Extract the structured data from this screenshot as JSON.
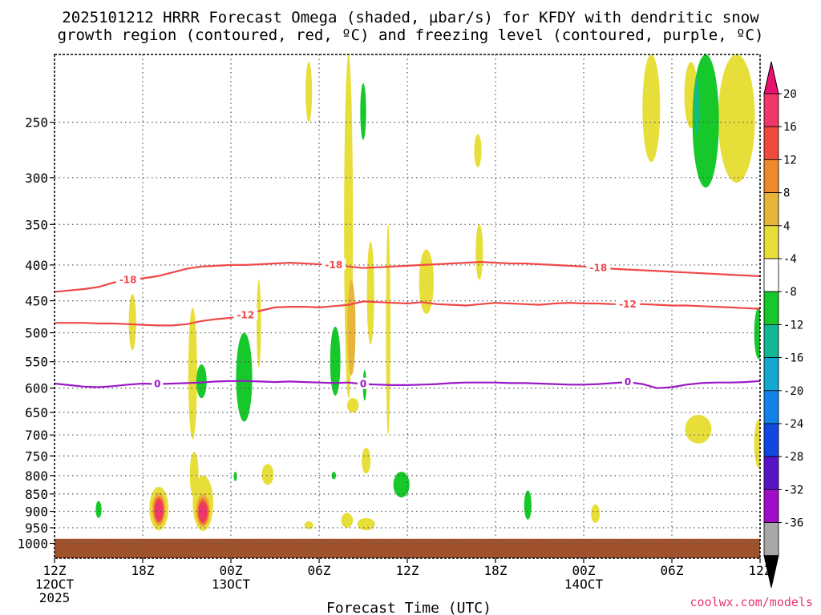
{
  "chart_data": {
    "type": "contour",
    "title_line1": "2025101212 HRRR Forecast Omega (shaded, µbar/s) for KFDY with dendritic snow",
    "title_line2": "growth region (contoured, red, ºC) and freezing level (contoured, purple, ºC)",
    "xlabel": "Forecast Time (UTC)",
    "credit": "coolwx.com/models",
    "y_axis": {
      "unit": "hPa",
      "range": [
        1050,
        200
      ],
      "ticks": [
        250,
        300,
        350,
        400,
        450,
        500,
        550,
        600,
        650,
        700,
        750,
        800,
        850,
        900,
        950,
        1000
      ]
    },
    "x_axis": {
      "unit": "forecast hour",
      "range": [
        0,
        48
      ],
      "ticks": [
        {
          "hour": 0,
          "lines": [
            "12Z",
            "12OCT",
            "2025"
          ]
        },
        {
          "hour": 6,
          "lines": [
            "18Z"
          ]
        },
        {
          "hour": 12,
          "lines": [
            "00Z",
            "13OCT"
          ]
        },
        {
          "hour": 18,
          "lines": [
            "06Z"
          ]
        },
        {
          "hour": 24,
          "lines": [
            "12Z"
          ]
        },
        {
          "hour": 30,
          "lines": [
            "18Z"
          ]
        },
        {
          "hour": 36,
          "lines": [
            "00Z",
            "14OCT"
          ]
        },
        {
          "hour": 42,
          "lines": [
            "06Z"
          ]
        },
        {
          "hour": 48,
          "lines": [
            "12Z"
          ]
        }
      ]
    },
    "colorbar": {
      "labels": [
        "20",
        "16",
        "12",
        "8",
        "4",
        "-4",
        "-8",
        "-12",
        "-16",
        "-20",
        "-24",
        "-28",
        "-32",
        "-36"
      ],
      "colors": [
        "#f0366b",
        "#f04a3c",
        "#ee8a2c",
        "#e8b43a",
        "#e8de3a",
        "#ffffff",
        "#16c82a",
        "#12b894",
        "#12a8d0",
        "#1282e8",
        "#1248e0",
        "#5a14c8",
        "#a00cc8",
        "#a8a8a8"
      ],
      "top_arrow": "#e8126e",
      "bottom_arrow": "#000000"
    },
    "contours": [
      {
        "label": "-18",
        "color": "#f04848",
        "label_hours": [
          5,
          19,
          37
        ],
        "points": [
          [
            0,
            437
          ],
          [
            1,
            435
          ],
          [
            2,
            433
          ],
          [
            3,
            430
          ],
          [
            4,
            424
          ],
          [
            5,
            420
          ],
          [
            6,
            418
          ],
          [
            7,
            415
          ],
          [
            8,
            410
          ],
          [
            9,
            405
          ],
          [
            10,
            402
          ],
          [
            11,
            401
          ],
          [
            12,
            400
          ],
          [
            13,
            400
          ],
          [
            14,
            399
          ],
          [
            15,
            398
          ],
          [
            16,
            397
          ],
          [
            17,
            398
          ],
          [
            18,
            399
          ],
          [
            19,
            400
          ],
          [
            20,
            402
          ],
          [
            21,
            404
          ],
          [
            22,
            403
          ],
          [
            23,
            402
          ],
          [
            24,
            401
          ],
          [
            25,
            400
          ],
          [
            26,
            399
          ],
          [
            27,
            398
          ],
          [
            28,
            397
          ],
          [
            29,
            396
          ],
          [
            30,
            397
          ],
          [
            31,
            398
          ],
          [
            32,
            398
          ],
          [
            33,
            399
          ],
          [
            34,
            400
          ],
          [
            35,
            401
          ],
          [
            36,
            402
          ],
          [
            37,
            404
          ],
          [
            38,
            405
          ],
          [
            39,
            406
          ],
          [
            40,
            407
          ],
          [
            41,
            408
          ],
          [
            42,
            409
          ],
          [
            43,
            410
          ],
          [
            44,
            411
          ],
          [
            45,
            412
          ],
          [
            46,
            413
          ],
          [
            47,
            414
          ],
          [
            48,
            415
          ]
        ]
      },
      {
        "label": "-12",
        "color": "#f04848",
        "label_hours": [
          13,
          39
        ],
        "points": [
          [
            0,
            484
          ],
          [
            1,
            484
          ],
          [
            2,
            484
          ],
          [
            3,
            485
          ],
          [
            4,
            485
          ],
          [
            5,
            486
          ],
          [
            6,
            487
          ],
          [
            7,
            488
          ],
          [
            8,
            488
          ],
          [
            9,
            486
          ],
          [
            10,
            481
          ],
          [
            11,
            478
          ],
          [
            12,
            476
          ],
          [
            13,
            472
          ],
          [
            14,
            465
          ],
          [
            15,
            460
          ],
          [
            16,
            459
          ],
          [
            17,
            459
          ],
          [
            18,
            460
          ],
          [
            19,
            458
          ],
          [
            20,
            456
          ],
          [
            21,
            451
          ],
          [
            22,
            452
          ],
          [
            23,
            453
          ],
          [
            24,
            454
          ],
          [
            25,
            452
          ],
          [
            26,
            455
          ],
          [
            27,
            456
          ],
          [
            28,
            457
          ],
          [
            29,
            455
          ],
          [
            30,
            453
          ],
          [
            31,
            454
          ],
          [
            32,
            455
          ],
          [
            33,
            456
          ],
          [
            34,
            454
          ],
          [
            35,
            453
          ],
          [
            36,
            454
          ],
          [
            37,
            454
          ],
          [
            38,
            455
          ],
          [
            39,
            455
          ],
          [
            40,
            455
          ],
          [
            41,
            456
          ],
          [
            42,
            457
          ],
          [
            43,
            457
          ],
          [
            44,
            458
          ],
          [
            45,
            459
          ],
          [
            46,
            460
          ],
          [
            47,
            461
          ],
          [
            48,
            462
          ]
        ]
      },
      {
        "label": "0",
        "color": "#9a18c8",
        "label_hours": [
          7,
          21,
          39
        ],
        "points": [
          [
            0,
            591
          ],
          [
            1,
            594
          ],
          [
            2,
            597
          ],
          [
            3,
            598
          ],
          [
            4,
            596
          ],
          [
            5,
            593
          ],
          [
            6,
            591
          ],
          [
            7,
            592
          ],
          [
            8,
            591
          ],
          [
            9,
            590
          ],
          [
            10,
            589
          ],
          [
            11,
            587
          ],
          [
            12,
            586
          ],
          [
            13,
            586
          ],
          [
            14,
            587
          ],
          [
            15,
            588
          ],
          [
            16,
            587
          ],
          [
            17,
            588
          ],
          [
            18,
            589
          ],
          [
            19,
            590
          ],
          [
            20,
            589
          ],
          [
            21,
            592
          ],
          [
            22,
            593
          ],
          [
            23,
            594
          ],
          [
            24,
            594
          ],
          [
            25,
            593
          ],
          [
            26,
            592
          ],
          [
            27,
            590
          ],
          [
            28,
            589
          ],
          [
            29,
            589
          ],
          [
            30,
            589
          ],
          [
            31,
            590
          ],
          [
            32,
            590
          ],
          [
            33,
            591
          ],
          [
            34,
            592
          ],
          [
            35,
            593
          ],
          [
            36,
            593
          ],
          [
            37,
            592
          ],
          [
            38,
            590
          ],
          [
            39,
            588
          ],
          [
            40,
            592
          ],
          [
            41,
            600
          ],
          [
            42,
            598
          ],
          [
            43,
            593
          ],
          [
            44,
            590
          ],
          [
            45,
            589
          ],
          [
            46,
            589
          ],
          [
            47,
            588
          ],
          [
            48,
            586
          ]
        ]
      }
    ],
    "shaded_regions": [
      {
        "color": "#e8de3a",
        "hour": 7.1,
        "p_top": 830,
        "p_bottom": 958,
        "half_width_h": 0.65
      },
      {
        "color": "#e8de3a",
        "hour": 10.1,
        "p_top": 800,
        "p_bottom": 960,
        "half_width_h": 0.7
      },
      {
        "color": "#e8de3a",
        "hour": 9.5,
        "p_top": 740,
        "p_bottom": 860,
        "half_width_h": 0.3
      },
      {
        "color": "#e8de3a",
        "hour": 5.3,
        "p_top": 440,
        "p_bottom": 530,
        "half_width_h": 0.25
      },
      {
        "color": "#e8de3a",
        "hour": 9.4,
        "p_top": 460,
        "p_bottom": 710,
        "half_width_h": 0.3
      },
      {
        "color": "#e8de3a",
        "hour": 13.9,
        "p_top": 420,
        "p_bottom": 560,
        "half_width_h": 0.15
      },
      {
        "color": "#e8de3a",
        "hour": 17.3,
        "p_top": 205,
        "p_bottom": 250,
        "half_width_h": 0.22
      },
      {
        "color": "#e8de3a",
        "hour": 20.0,
        "p_top": 200,
        "p_bottom": 620,
        "half_width_h": 0.3
      },
      {
        "color": "#e8de3a",
        "hour": 20.3,
        "p_top": 620,
        "p_bottom": 650,
        "half_width_h": 0.4
      },
      {
        "color": "#e8de3a",
        "hour": 22.7,
        "p_top": 350,
        "p_bottom": 700,
        "half_width_h": 0.15
      },
      {
        "color": "#e8de3a",
        "hour": 21.5,
        "p_top": 370,
        "p_bottom": 520,
        "half_width_h": 0.25
      },
      {
        "color": "#e8de3a",
        "hour": 19.9,
        "p_top": 905,
        "p_bottom": 950,
        "half_width_h": 0.4
      },
      {
        "color": "#e8de3a",
        "hour": 21.2,
        "p_top": 920,
        "p_bottom": 958,
        "half_width_h": 0.6
      },
      {
        "color": "#e8de3a",
        "hour": 21.2,
        "p_top": 730,
        "p_bottom": 795,
        "half_width_h": 0.3
      },
      {
        "color": "#e8de3a",
        "hour": 25.3,
        "p_top": 380,
        "p_bottom": 470,
        "half_width_h": 0.5
      },
      {
        "color": "#e8de3a",
        "hour": 28.8,
        "p_top": 260,
        "p_bottom": 290,
        "half_width_h": 0.25
      },
      {
        "color": "#e8de3a",
        "hour": 28.9,
        "p_top": 350,
        "p_bottom": 420,
        "half_width_h": 0.25
      },
      {
        "color": "#e8de3a",
        "hour": 17.3,
        "p_top": 930,
        "p_bottom": 955,
        "half_width_h": 0.3
      },
      {
        "color": "#e8de3a",
        "hour": 36.8,
        "p_top": 880,
        "p_bottom": 935,
        "half_width_h": 0.3
      },
      {
        "color": "#e8de3a",
        "hour": 40.6,
        "p_top": 200,
        "p_bottom": 285,
        "half_width_h": 0.6
      },
      {
        "color": "#e8de3a",
        "hour": 43.3,
        "p_top": 205,
        "p_bottom": 255,
        "half_width_h": 0.45
      },
      {
        "color": "#e8de3a",
        "hour": 46.4,
        "p_top": 200,
        "p_bottom": 305,
        "half_width_h": 1.25
      },
      {
        "color": "#e8de3a",
        "hour": 43.8,
        "p_top": 655,
        "p_bottom": 720,
        "half_width_h": 0.9
      },
      {
        "color": "#e8de3a",
        "hour": 47.9,
        "p_top": 665,
        "p_bottom": 780,
        "half_width_h": 0.3
      },
      {
        "color": "#e8de3a",
        "hour": 14.5,
        "p_top": 770,
        "p_bottom": 825,
        "half_width_h": 0.4
      },
      {
        "color": "#16c82a",
        "hour": 10.0,
        "p_top": 555,
        "p_bottom": 620,
        "half_width_h": 0.35
      },
      {
        "color": "#16c82a",
        "hour": 12.9,
        "p_top": 500,
        "p_bottom": 670,
        "half_width_h": 0.55
      },
      {
        "color": "#16c82a",
        "hour": 12.3,
        "p_top": 790,
        "p_bottom": 815,
        "half_width_h": 0.1
      },
      {
        "color": "#16c82a",
        "hour": 3.0,
        "p_top": 870,
        "p_bottom": 920,
        "half_width_h": 0.2
      },
      {
        "color": "#16c82a",
        "hour": 19.1,
        "p_top": 490,
        "p_bottom": 615,
        "half_width_h": 0.35
      },
      {
        "color": "#16c82a",
        "hour": 19.0,
        "p_top": 790,
        "p_bottom": 810,
        "half_width_h": 0.15
      },
      {
        "color": "#16c82a",
        "hour": 21.0,
        "p_top": 220,
        "p_bottom": 265,
        "half_width_h": 0.2
      },
      {
        "color": "#16c82a",
        "hour": 21.1,
        "p_top": 565,
        "p_bottom": 625,
        "half_width_h": 0.12
      },
      {
        "color": "#16c82a",
        "hour": 23.6,
        "p_top": 790,
        "p_bottom": 860,
        "half_width_h": 0.55
      },
      {
        "color": "#16c82a",
        "hour": 32.2,
        "p_top": 840,
        "p_bottom": 925,
        "half_width_h": 0.25
      },
      {
        "color": "#16c82a",
        "hour": 44.3,
        "p_top": 200,
        "p_bottom": 310,
        "half_width_h": 0.9
      },
      {
        "color": "#16c82a",
        "hour": 47.9,
        "p_top": 460,
        "p_bottom": 545,
        "half_width_h": 0.3
      },
      {
        "color": "#12b894",
        "hour": 43.7,
        "p_top": 215,
        "p_bottom": 260,
        "half_width_h": 0.15
      },
      {
        "color": "#e8b43a",
        "hour": 20.2,
        "p_top": 420,
        "p_bottom": 575,
        "half_width_h": 0.28
      },
      {
        "color": "#e8b43a",
        "hour": 7.1,
        "p_top": 845,
        "p_bottom": 945,
        "half_width_h": 0.45
      },
      {
        "color": "#e8b43a",
        "hour": 10.1,
        "p_top": 850,
        "p_bottom": 948,
        "half_width_h": 0.48
      },
      {
        "color": "#ee8a2c",
        "hour": 7.1,
        "p_top": 855,
        "p_bottom": 938,
        "half_width_h": 0.38
      },
      {
        "color": "#ee8a2c",
        "hour": 10.1,
        "p_top": 860,
        "p_bottom": 942,
        "half_width_h": 0.4
      },
      {
        "color": "#f04a3c",
        "hour": 7.1,
        "p_top": 862,
        "p_bottom": 932,
        "half_width_h": 0.32
      },
      {
        "color": "#f04a3c",
        "hour": 10.1,
        "p_top": 868,
        "p_bottom": 936,
        "half_width_h": 0.33
      },
      {
        "color": "#f0366b",
        "hour": 7.1,
        "p_top": 868,
        "p_bottom": 925,
        "half_width_h": 0.26
      },
      {
        "color": "#f0366b",
        "hour": 10.1,
        "p_top": 874,
        "p_bottom": 930,
        "half_width_h": 0.27
      }
    ],
    "terrain": {
      "color": "#a0522d",
      "p_top": 985
    }
  }
}
